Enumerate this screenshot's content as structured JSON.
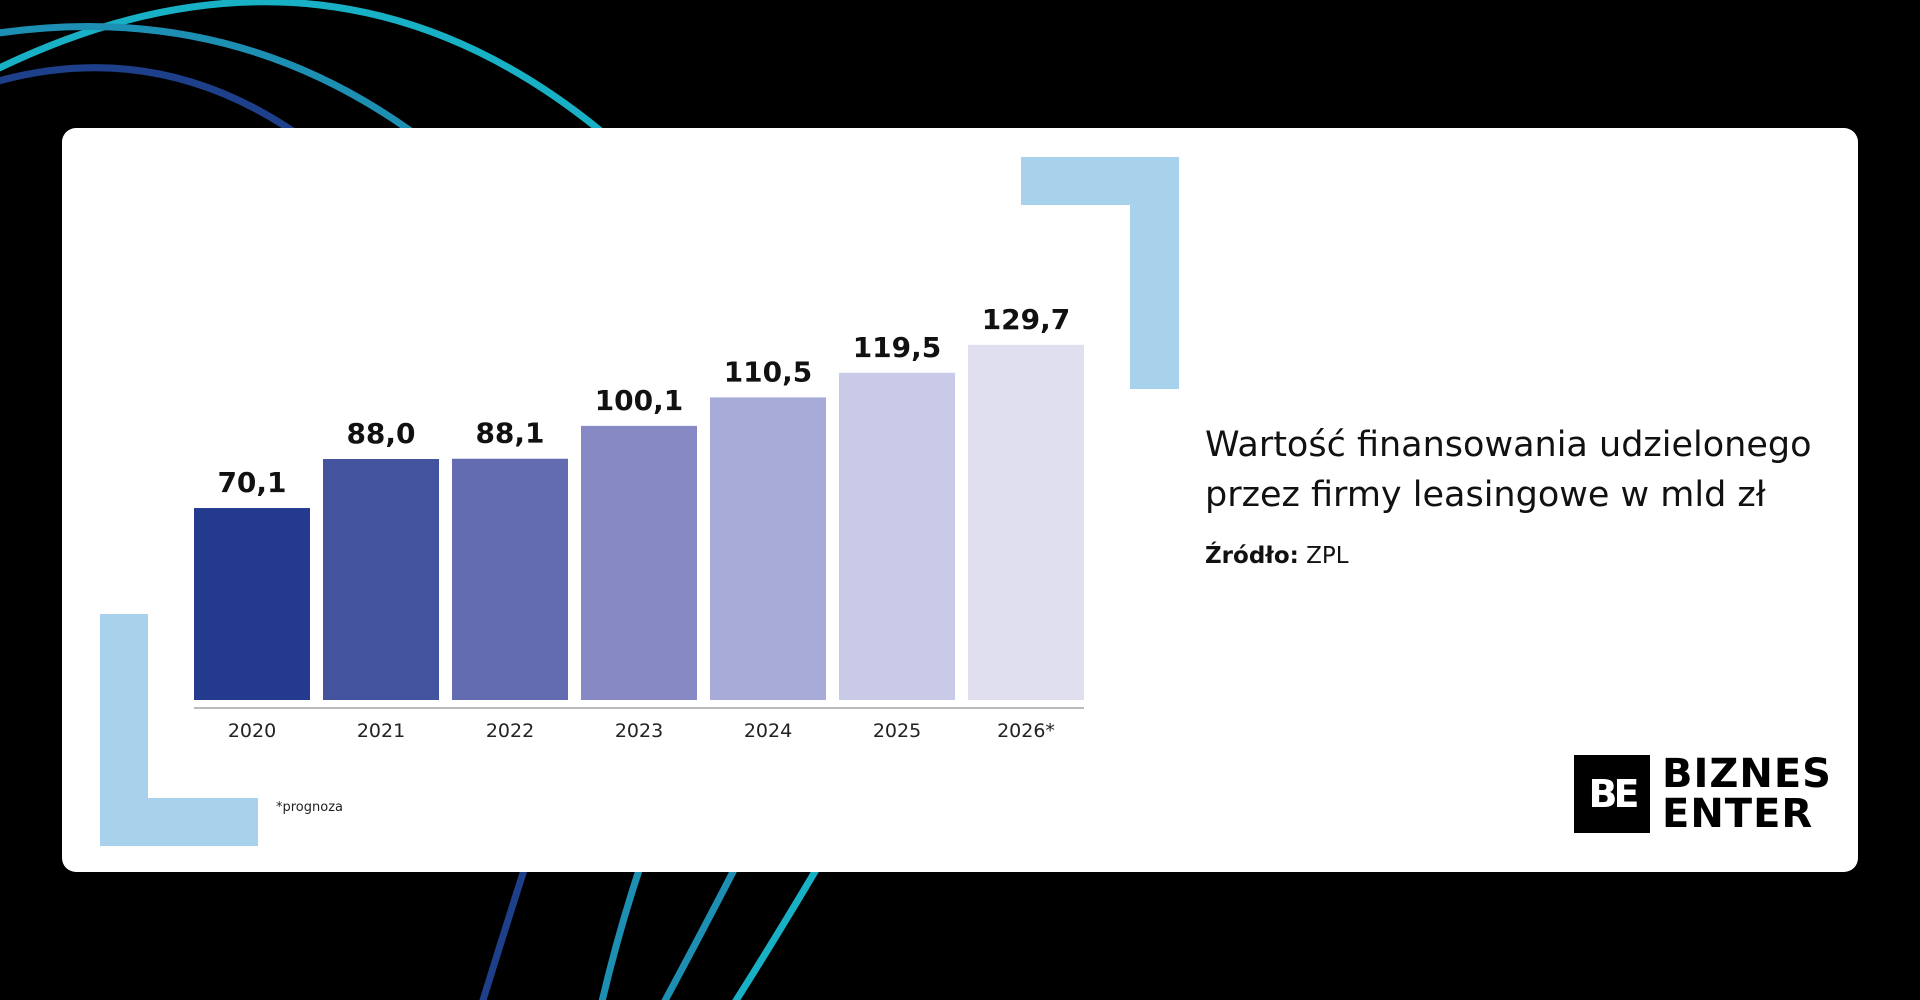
{
  "colors": {
    "background": "#000000",
    "card": "#ffffff",
    "corner_accent": "#a8d1ec",
    "arc_colors": [
      "#1c8fb3",
      "#1e3f8a",
      "#18b0c4"
    ],
    "bars": [
      "#233a8f",
      "#43539e",
      "#636cb0",
      "#8689c3",
      "#a8aad7",
      "#c9c9e8",
      "#dfdff0"
    ]
  },
  "chart_data": {
    "type": "bar",
    "categories": [
      "2020",
      "2021",
      "2022",
      "2023",
      "2024",
      "2025",
      "2026*"
    ],
    "values": [
      70.1,
      88.0,
      88.1,
      100.1,
      110.5,
      119.5,
      129.7
    ],
    "value_labels": [
      "70,1",
      "88,0",
      "88,1",
      "100,1",
      "110,5",
      "119,5",
      "129,7"
    ],
    "title": "Wartość finansowania udzielonego przez firmy leasingowe w mld zł",
    "xlabel": "",
    "ylabel": "",
    "ylim": [
      0,
      130
    ],
    "grid": false,
    "legend": "none"
  },
  "text": {
    "title": "Wartość finansowania udzielonego przez firmy leasingowe w mld zł",
    "source_label": "Źródło:",
    "source_value": " ZPL",
    "footnote": "*prognoza"
  },
  "logo": {
    "mark": "BE",
    "line1": "BIZNES",
    "line2": "ENTER"
  }
}
